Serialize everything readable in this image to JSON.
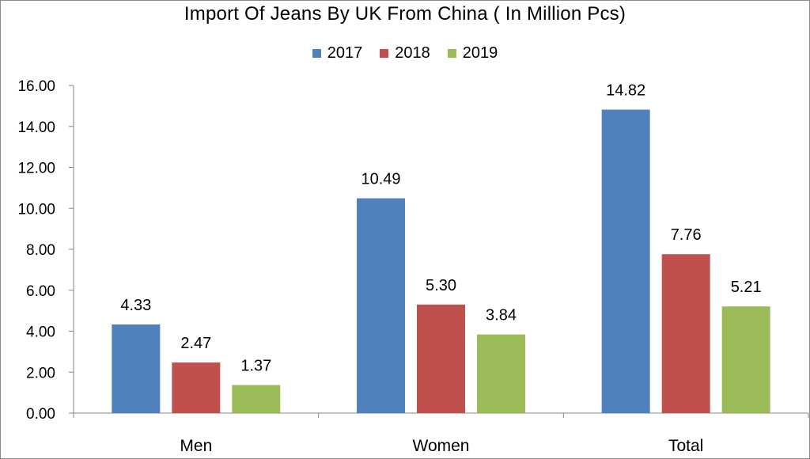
{
  "chart_data": {
    "type": "bar",
    "title": "Import Of Jeans By UK From China ( In Million Pcs)",
    "categories": [
      "Men",
      "Women",
      "Total"
    ],
    "series": [
      {
        "name": "2017",
        "color": "#4f81bd",
        "values": [
          4.33,
          10.49,
          14.82
        ]
      },
      {
        "name": "2018",
        "color": "#c0504d",
        "values": [
          2.47,
          5.3,
          7.76
        ]
      },
      {
        "name": "2019",
        "color": "#9bbb59",
        "values": [
          1.37,
          3.84,
          5.21
        ]
      }
    ],
    "value_labels": [
      [
        "4.33",
        "10.49",
        "14.82"
      ],
      [
        "2.47",
        "5.30",
        "7.76"
      ],
      [
        "1.37",
        "3.84",
        "5.21"
      ]
    ],
    "ylim": [
      0,
      16
    ],
    "yticks": [
      "0.00",
      "2.00",
      "4.00",
      "6.00",
      "8.00",
      "10.00",
      "12.00",
      "14.00",
      "16.00"
    ],
    "legend_position": "top",
    "grid": false
  }
}
